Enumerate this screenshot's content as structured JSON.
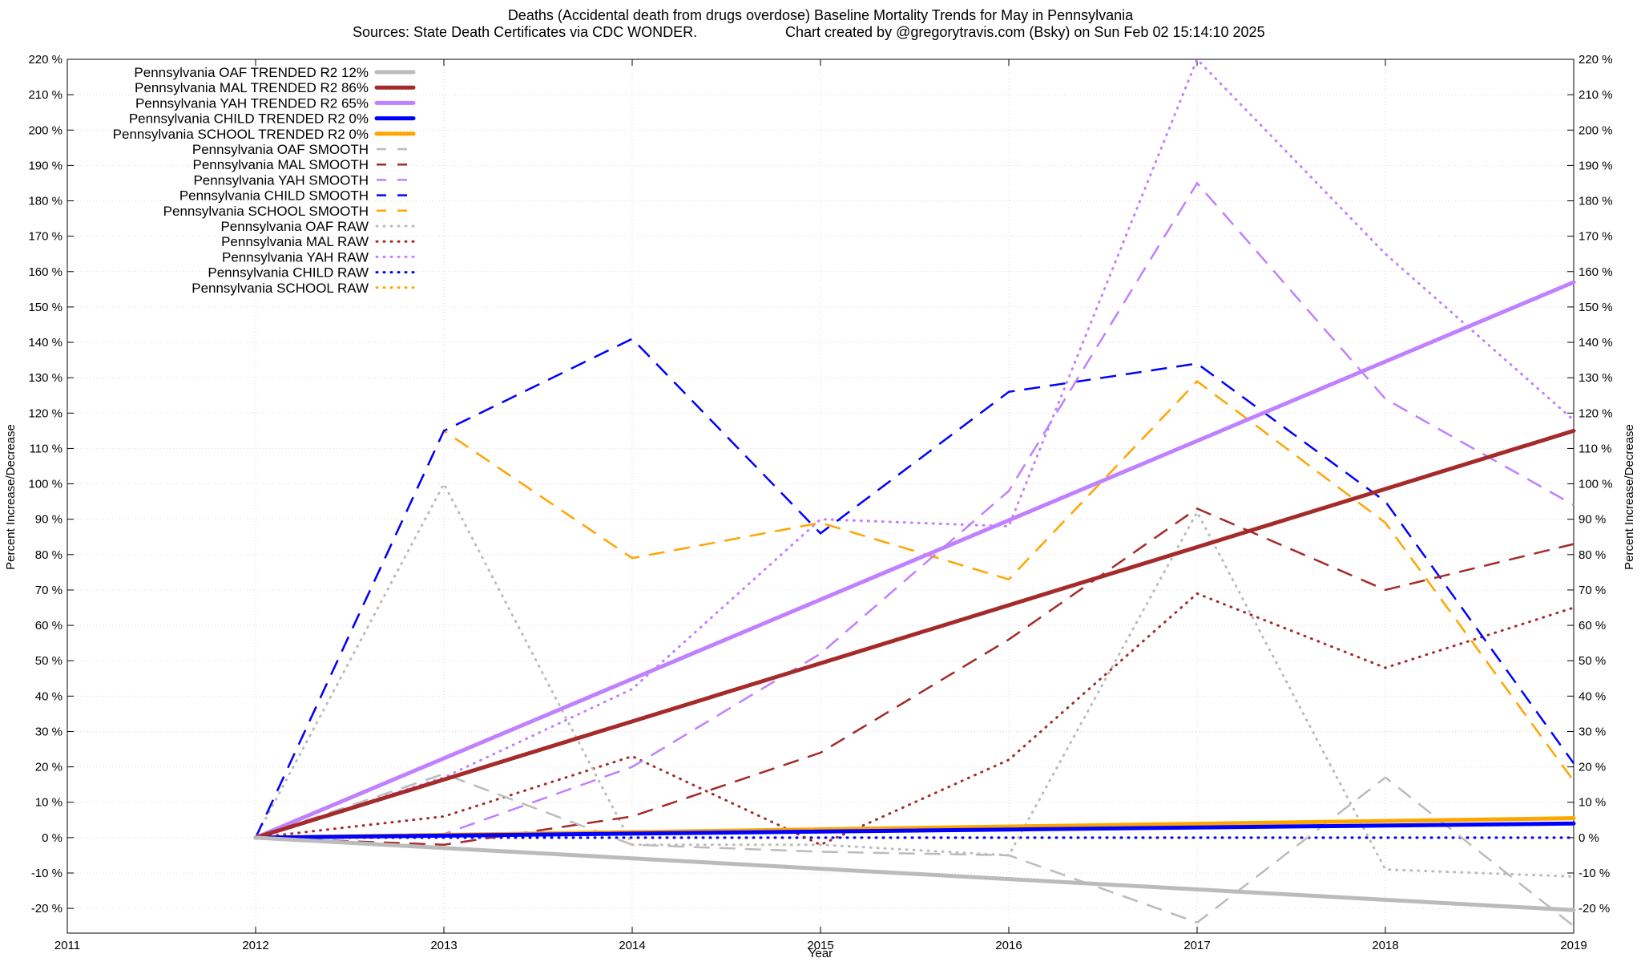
{
  "chart_data": {
    "type": "line",
    "title": "Deaths (Accidental death from drugs overdose)  Baseline Mortality Trends for May in Pennsylvania",
    "subtitle_left": "Sources: State Death Certificates via CDC WONDER.",
    "subtitle_right": "Chart created by @gregorytravis.com (Bsky) on Sun Feb 02 15:14:10 2025",
    "xlabel": "Year",
    "ylabel": "Percent Increase/Decrease",
    "ylabel_right": "Percent Increase/Decrease",
    "xlim": [
      2011,
      2019
    ],
    "ylim": [
      -27,
      220
    ],
    "x_ticks": [
      2011,
      2012,
      2013,
      2014,
      2015,
      2016,
      2017,
      2018,
      2019
    ],
    "y_ticks": [
      -20,
      -10,
      0,
      10,
      20,
      30,
      40,
      50,
      60,
      70,
      80,
      90,
      100,
      110,
      120,
      130,
      140,
      150,
      160,
      170,
      180,
      190,
      200,
      210,
      220
    ],
    "y_tick_suffix": " %",
    "grid": true,
    "legend_position": "top-left",
    "colors": {
      "OAF": "#bbbbbb",
      "MAL": "#a52a2a",
      "YAH": "#c080ff",
      "CHILD": "#0000ff",
      "SCHOOL": "#ffa500"
    },
    "series": [
      {
        "name": "Pennsylvania OAF TRENDED R2  12%",
        "group": "OAF",
        "style": "solid",
        "x": [
          2012,
          2019
        ],
        "y": [
          0,
          -20.5
        ]
      },
      {
        "name": "Pennsylvania MAL TRENDED R2  86%",
        "group": "MAL",
        "style": "solid",
        "x": [
          2012,
          2019
        ],
        "y": [
          0,
          115
        ]
      },
      {
        "name": "Pennsylvania YAH TRENDED R2  65%",
        "group": "YAH",
        "style": "solid",
        "x": [
          2012,
          2019
        ],
        "y": [
          0,
          157
        ]
      },
      {
        "name": "Pennsylvania CHILD TRENDED R2   0%",
        "group": "CHILD",
        "style": "solid",
        "x": [
          2012,
          2019
        ],
        "y": [
          0,
          4
        ]
      },
      {
        "name": "Pennsylvania SCHOOL TRENDED R2   0%",
        "group": "SCHOOL",
        "style": "solid",
        "x": [
          2012,
          2019
        ],
        "y": [
          0,
          5.5
        ]
      },
      {
        "name": "Pennsylvania OAF SMOOTH",
        "group": "OAF",
        "style": "dashed",
        "x": [
          2012,
          2013,
          2014,
          2015,
          2016,
          2017,
          2018,
          2019
        ],
        "y": [
          0,
          18,
          -2,
          -4,
          -5,
          -24,
          17,
          -25
        ]
      },
      {
        "name": "Pennsylvania MAL SMOOTH",
        "group": "MAL",
        "style": "dashed",
        "x": [
          2012,
          2013,
          2014,
          2015,
          2016,
          2017,
          2018,
          2019
        ],
        "y": [
          0,
          -2,
          6,
          24,
          56,
          93,
          70,
          83
        ]
      },
      {
        "name": "Pennsylvania YAH SMOOTH",
        "group": "YAH",
        "style": "dashed",
        "x": [
          2012,
          2013,
          2014,
          2015,
          2016,
          2017,
          2018,
          2019
        ],
        "y": [
          0,
          1,
          20,
          52,
          98,
          185,
          124,
          94
        ]
      },
      {
        "name": "Pennsylvania CHILD SMOOTH",
        "group": "CHILD",
        "style": "dashed",
        "x": [
          2012,
          2013,
          2014,
          2015,
          2016,
          2017,
          2018,
          2019
        ],
        "y": [
          0,
          115,
          141,
          86,
          126,
          134,
          95,
          21
        ]
      },
      {
        "name": "Pennsylvania SCHOOL SMOOTH",
        "group": "SCHOOL",
        "style": "dashed",
        "x": [
          2012,
          2013,
          2014,
          2015,
          2016,
          2017,
          2018,
          2019
        ],
        "y": [
          0,
          115,
          79,
          89,
          73,
          129,
          89,
          16
        ]
      },
      {
        "name": "Pennsylvania OAF RAW",
        "group": "OAF",
        "style": "dotted",
        "x": [
          2012,
          2013,
          2014,
          2015,
          2016,
          2017,
          2018,
          2019
        ],
        "y": [
          0,
          100,
          -2,
          -2,
          -5,
          92,
          -9,
          -11
        ]
      },
      {
        "name": "Pennsylvania MAL RAW",
        "group": "MAL",
        "style": "dotted",
        "x": [
          2012,
          2013,
          2014,
          2015,
          2016,
          2017,
          2018,
          2019
        ],
        "y": [
          0,
          6,
          23,
          -2,
          22,
          69,
          48,
          65
        ]
      },
      {
        "name": "Pennsylvania YAH RAW",
        "group": "YAH",
        "style": "dotted",
        "x": [
          2012,
          2013,
          2014,
          2015,
          2016,
          2017,
          2018,
          2019
        ],
        "y": [
          0,
          17,
          42,
          90,
          88,
          220,
          165,
          118
        ]
      },
      {
        "name": "Pennsylvania CHILD RAW",
        "group": "CHILD",
        "style": "dotted",
        "x": [
          2012,
          2013,
          2014,
          2015,
          2016,
          2017,
          2018,
          2019
        ],
        "y": [
          0,
          0,
          0,
          0,
          0,
          0,
          0,
          0
        ]
      },
      {
        "name": "Pennsylvania SCHOOL RAW",
        "group": "SCHOOL",
        "style": "dotted",
        "x": [
          2012,
          2013,
          2014,
          2015,
          2016,
          2017,
          2018,
          2019
        ],
        "y": [
          0,
          0,
          0,
          0,
          0,
          0,
          0,
          0
        ]
      }
    ]
  }
}
